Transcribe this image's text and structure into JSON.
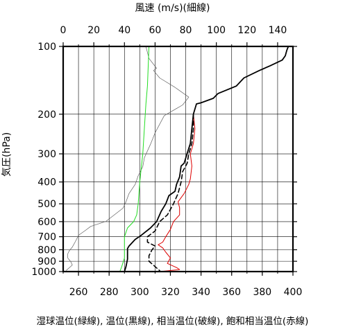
{
  "chart_data": {
    "type": "line",
    "title": "風速 (m/s)(細線)",
    "ylabel": "気圧(hPa)",
    "xlabel": "湿球温位(緑線), 温位(黒線), 相当温位(破線), 飽和相当温位(赤線)",
    "y_scale": "log",
    "y_reversed": true,
    "ylim": [
      100,
      1000
    ],
    "yticks": [
      100,
      200,
      300,
      400,
      500,
      600,
      700,
      800,
      900,
      1000
    ],
    "y_tick_labels": [
      "100",
      "200",
      "300",
      "400",
      "500",
      "600",
      "700",
      "800",
      "900",
      "1000"
    ],
    "x_bottom": {
      "lim": [
        250,
        400
      ],
      "ticks": [
        260,
        280,
        300,
        320,
        340,
        360,
        380,
        400
      ],
      "tick_labels": [
        "260",
        "280",
        "300",
        "320",
        "340",
        "360",
        "380",
        "400"
      ]
    },
    "x_top": {
      "lim": [
        0,
        150
      ],
      "ticks": [
        0,
        20,
        40,
        60,
        80,
        100,
        120,
        140
      ],
      "tick_labels": [
        "0",
        "20",
        "40",
        "60",
        "80",
        "100",
        "120",
        "140"
      ]
    },
    "grid": true,
    "series": [
      {
        "key": "wind",
        "axis": "top",
        "color": "#606060",
        "width": 0.7,
        "dash": "",
        "points": [
          [
            54,
            100
          ],
          [
            56,
            113
          ],
          [
            61,
            125
          ],
          [
            59,
            128
          ],
          [
            63,
            138
          ],
          [
            73,
            152
          ],
          [
            82,
            168
          ],
          [
            78,
            182
          ],
          [
            66,
            203
          ],
          [
            60,
            242
          ],
          [
            57,
            272
          ],
          [
            53,
            312
          ],
          [
            52,
            342
          ],
          [
            49,
            375
          ],
          [
            47,
            410
          ],
          [
            43,
            450
          ],
          [
            41,
            490
          ],
          [
            39,
            523
          ],
          [
            34,
            556
          ],
          [
            28,
            598
          ],
          [
            18,
            630
          ],
          [
            14,
            660
          ],
          [
            10,
            690
          ],
          [
            8,
            735
          ],
          [
            6,
            778
          ],
          [
            4,
            808
          ],
          [
            3,
            835
          ],
          [
            3,
            870
          ],
          [
            5,
            905
          ],
          [
            6,
            935
          ],
          [
            4,
            962
          ],
          [
            2,
            988
          ]
        ]
      },
      {
        "key": "wet_bulb_potential_temperature",
        "axis": "bottom",
        "color": "#22dd22",
        "width": 1.0,
        "dash": "",
        "points": [
          [
            306,
            100
          ],
          [
            305,
            150
          ],
          [
            304,
            180
          ],
          [
            303,
            230
          ],
          [
            302,
            300
          ],
          [
            300,
            400
          ],
          [
            299,
            500
          ],
          [
            298,
            560
          ],
          [
            296,
            600
          ],
          [
            292,
            640
          ],
          [
            290,
            700
          ],
          [
            290,
            800
          ],
          [
            290,
            870
          ],
          [
            288,
            960
          ],
          [
            287,
            1000
          ]
        ]
      },
      {
        "key": "saturated_equivalent_potential_temperature",
        "axis": "bottom",
        "color": "#dd0000",
        "width": 1.0,
        "dash": "",
        "points": [
          [
            397,
            100
          ],
          [
            396,
            104
          ],
          [
            395,
            110
          ],
          [
            393,
            115
          ],
          [
            385,
            122
          ],
          [
            378,
            128
          ],
          [
            368,
            138
          ],
          [
            363,
            150
          ],
          [
            351,
            162
          ],
          [
            348,
            170
          ],
          [
            340,
            178
          ],
          [
            337,
            180
          ],
          [
            335,
            200
          ],
          [
            336,
            232
          ],
          [
            335,
            270
          ],
          [
            333,
            300
          ],
          [
            334,
            340
          ],
          [
            333,
            388
          ],
          [
            332,
            410
          ],
          [
            329,
            450
          ],
          [
            325,
            490
          ],
          [
            326,
            520
          ],
          [
            326,
            560
          ],
          [
            322,
            600
          ],
          [
            320,
            650
          ],
          [
            317,
            700
          ],
          [
            315,
            740
          ],
          [
            312,
            760
          ],
          [
            315,
            785
          ],
          [
            317,
            820
          ],
          [
            320,
            870
          ],
          [
            318,
            920
          ],
          [
            324,
            960
          ],
          [
            326,
            980
          ],
          [
            313,
            1000
          ]
        ]
      },
      {
        "key": "potential_temperature",
        "axis": "bottom",
        "color": "#000000",
        "width": 1.8,
        "dash": "",
        "points": [
          [
            397,
            100
          ],
          [
            396,
            104
          ],
          [
            395,
            110
          ],
          [
            393,
            115
          ],
          [
            385,
            122
          ],
          [
            378,
            128
          ],
          [
            368,
            138
          ],
          [
            363,
            150
          ],
          [
            351,
            162
          ],
          [
            348,
            170
          ],
          [
            340,
            178
          ],
          [
            337,
            180
          ],
          [
            335,
            200
          ],
          [
            334,
            232
          ],
          [
            333,
            270
          ],
          [
            331,
            298
          ],
          [
            329,
            330
          ],
          [
            327,
            340
          ],
          [
            326,
            380
          ],
          [
            324,
            410
          ],
          [
            323,
            440
          ],
          [
            319,
            460
          ],
          [
            317,
            500
          ],
          [
            314,
            540
          ],
          [
            311,
            600
          ],
          [
            307,
            640
          ],
          [
            301,
            690
          ],
          [
            297,
            720
          ],
          [
            293,
            770
          ],
          [
            292,
            790
          ],
          [
            292,
            880
          ],
          [
            291,
            950
          ],
          [
            290,
            1000
          ]
        ]
      },
      {
        "key": "equivalent_potential_temperature",
        "axis": "bottom",
        "color": "#000000",
        "width": 1.6,
        "dash": "6,4",
        "points": [
          [
            335,
            200
          ],
          [
            335,
            232
          ],
          [
            334,
            270
          ],
          [
            332,
            300
          ],
          [
            331,
            330
          ],
          [
            328,
            360
          ],
          [
            327,
            400
          ],
          [
            325,
            450
          ],
          [
            322,
            500
          ],
          [
            318,
            560
          ],
          [
            313,
            600
          ],
          [
            310,
            660
          ],
          [
            305,
            700
          ],
          [
            305,
            740
          ],
          [
            310,
            770
          ],
          [
            308,
            800
          ],
          [
            306,
            850
          ],
          [
            306,
            900
          ],
          [
            310,
            950
          ],
          [
            313,
            990
          ]
        ]
      }
    ]
  }
}
